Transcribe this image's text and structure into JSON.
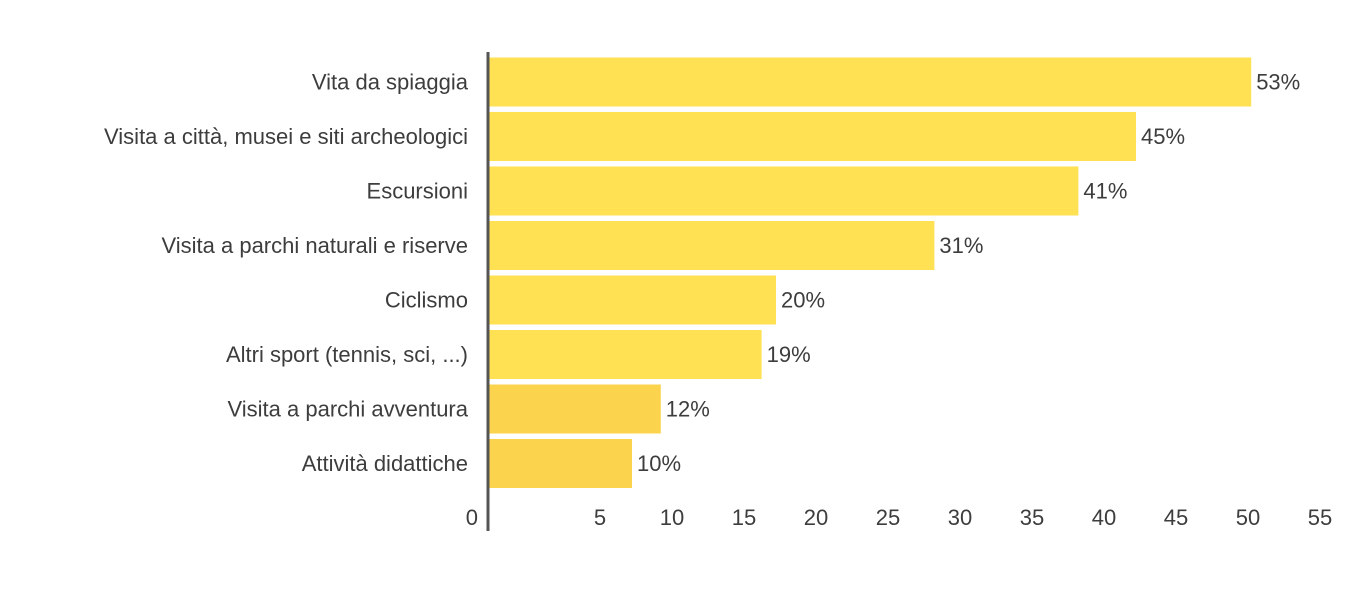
{
  "chart_data": {
    "type": "bar",
    "orientation": "horizontal",
    "categories": [
      "Vita da spiaggia",
      "Visita a città, musei e siti archeologici",
      "Escursioni",
      "Visita a parchi naturali e riserve",
      "Ciclismo",
      "Altri sport (tennis, sci, ...)",
      "Visita a parchi avventura",
      "Attività didattiche"
    ],
    "values": [
      53,
      45,
      41,
      31,
      20,
      19,
      12,
      10
    ],
    "value_labels": [
      "53%",
      "45%",
      "41%",
      "31%",
      "20%",
      "19%",
      "12%",
      "10%"
    ],
    "xticks": [
      0,
      5,
      10,
      15,
      20,
      25,
      30,
      35,
      40,
      45,
      50,
      55
    ],
    "xlim": [
      0,
      55
    ],
    "grid": false,
    "colors": [
      "#ffe153",
      "#ffe153",
      "#ffe153",
      "#ffe153",
      "#ffe153",
      "#ffe153",
      "#fcd34d",
      "#fcd34d"
    ],
    "axis_color": "#555555"
  }
}
